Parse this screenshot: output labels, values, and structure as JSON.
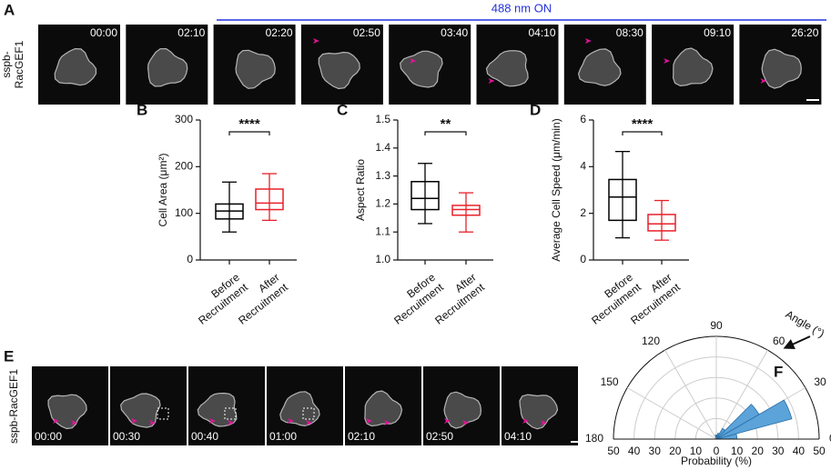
{
  "panel_labels": [
    "A",
    "B",
    "C",
    "D",
    "E",
    "F"
  ],
  "timelapse_a": {
    "label": [
      "sspb-",
      "RacGEF1"
    ],
    "stimulus": "488 nm ON",
    "timestamps": [
      "00:00",
      "02:10",
      "02:20",
      "02:50",
      "03:40",
      "04:10",
      "08:30",
      "09:10",
      "26:20"
    ]
  },
  "timelapse_e": {
    "label": "sspb-RacGEF1",
    "timestamps": [
      "00:00",
      "00:30",
      "00:40",
      "01:00",
      "02:10",
      "02:50",
      "04:10"
    ]
  },
  "chart_data": [
    {
      "type": "box",
      "ylabel": "Cell Area (μm²)",
      "categories": [
        [
          "Before",
          "Recruitment"
        ],
        [
          "After",
          "Recruitment"
        ]
      ],
      "colors": [
        "#000000",
        "#e8202a"
      ],
      "significance": "****",
      "boxes": [
        {
          "whisker_low": 60,
          "q1": 88,
          "median": 105,
          "q3": 120,
          "whisker_high": 167
        },
        {
          "whisker_low": 85,
          "q1": 108,
          "median": 122,
          "q3": 152,
          "whisker_high": 185
        }
      ],
      "ylim": [
        0,
        300
      ],
      "yticks": [
        0,
        100,
        200,
        300
      ]
    },
    {
      "type": "box",
      "ylabel": "Aspect Ratio",
      "categories": [
        [
          "Before",
          "Recruitment"
        ],
        [
          "After",
          "Recruitment"
        ]
      ],
      "colors": [
        "#000000",
        "#e8202a"
      ],
      "significance": "**",
      "boxes": [
        {
          "whisker_low": 1.13,
          "q1": 1.18,
          "median": 1.22,
          "q3": 1.28,
          "whisker_high": 1.345
        },
        {
          "whisker_low": 1.1,
          "q1": 1.16,
          "median": 1.18,
          "q3": 1.195,
          "whisker_high": 1.24
        }
      ],
      "ylim": [
        1,
        1.5
      ],
      "yticks": [
        {
          "value": 1,
          "label": "1.0"
        },
        1.1,
        1.2,
        1.3,
        1.4,
        1.5
      ]
    },
    {
      "type": "box",
      "ylabel": "Average Cell Speed (μm/min)",
      "categories": [
        [
          "Before",
          "Recruitment"
        ],
        [
          "After",
          "Recruitment"
        ]
      ],
      "colors": [
        "#000000",
        "#e8202a"
      ],
      "significance": "****",
      "boxes": [
        {
          "whisker_low": 0.95,
          "q1": 1.7,
          "median": 2.7,
          "q3": 3.45,
          "whisker_high": 4.65
        },
        {
          "whisker_low": 0.85,
          "q1": 1.25,
          "median": 1.55,
          "q3": 1.95,
          "whisker_high": 2.55
        }
      ],
      "ylim": [
        0,
        6
      ],
      "yticks": [
        0,
        2,
        4,
        6
      ]
    },
    {
      "type": "polar",
      "xlabel": "Probability (%)",
      "angle_label": "Angle (°)",
      "theta_bins": [
        0,
        15,
        30,
        45,
        60,
        75,
        90,
        105,
        120,
        135,
        150,
        165,
        180
      ],
      "values": [
        10,
        38,
        24,
        6,
        3,
        2,
        2,
        0,
        0,
        0,
        0,
        0
      ],
      "color": "#5ba3d9",
      "rlim": [
        0,
        50
      ],
      "rticks": [
        0,
        10,
        20,
        30,
        40,
        50
      ],
      "thetaticks": [
        0,
        30,
        60,
        90,
        120,
        150,
        180
      ]
    }
  ]
}
